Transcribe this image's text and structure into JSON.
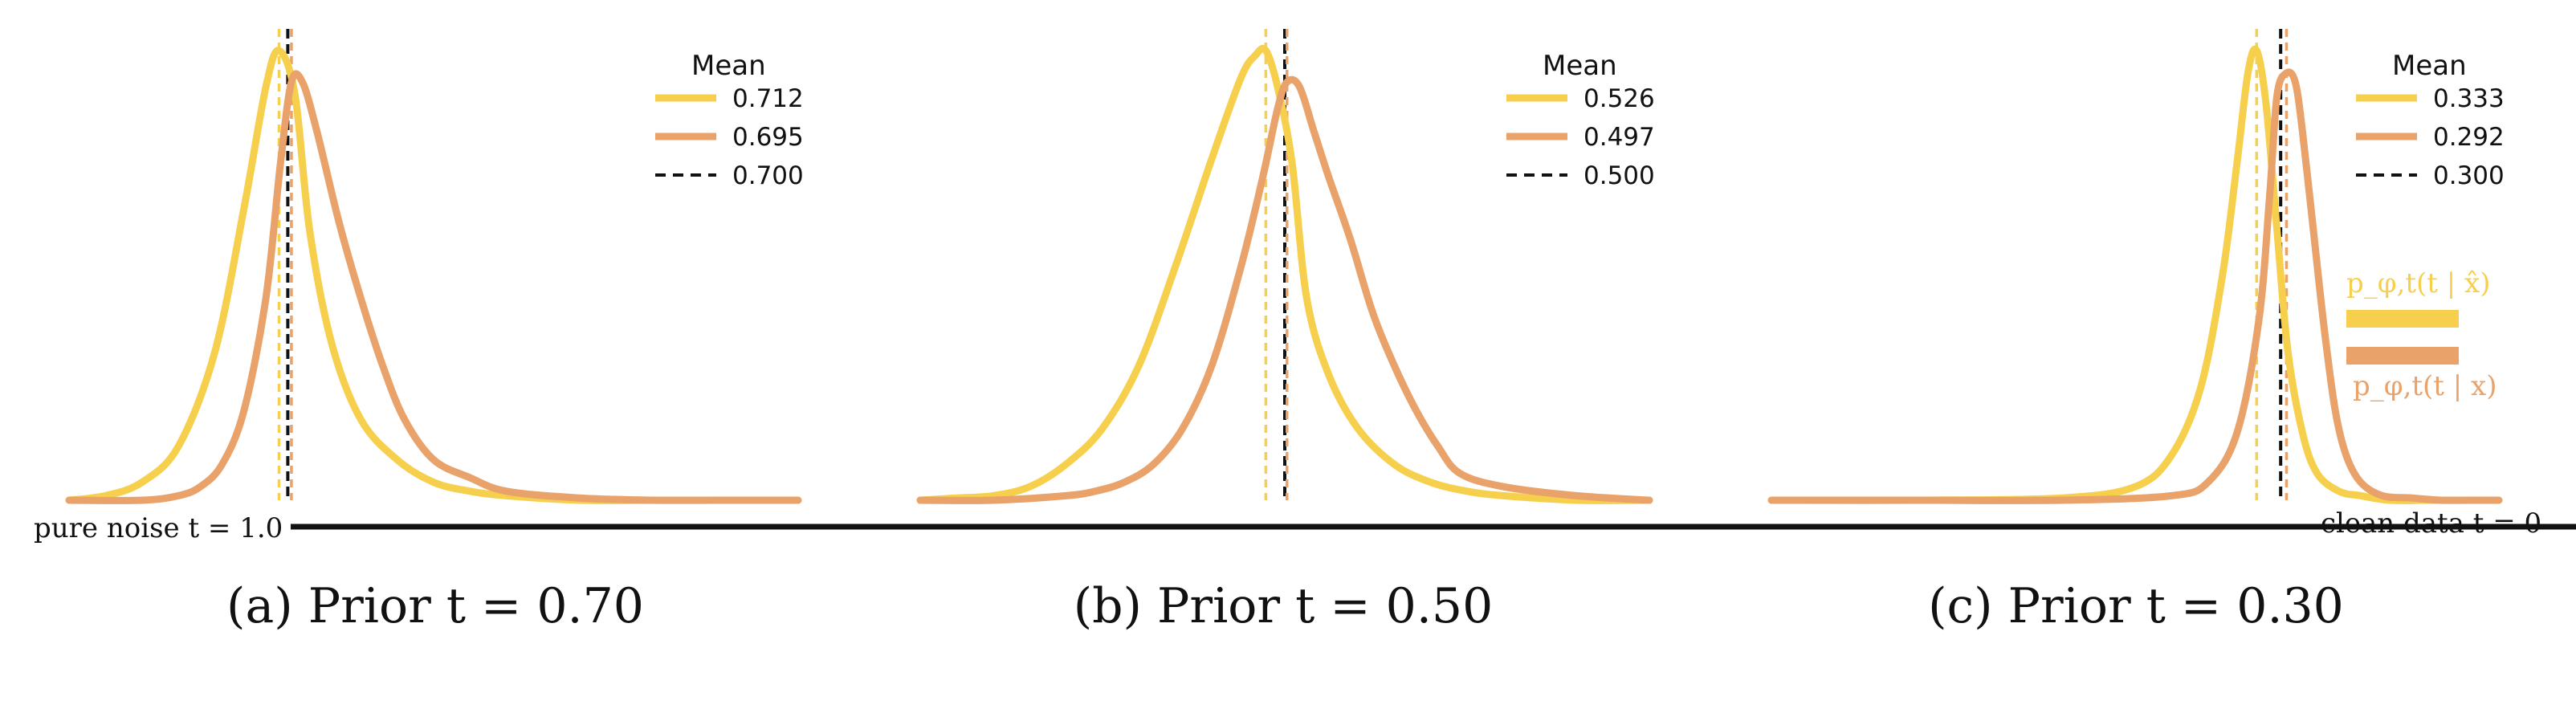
{
  "colors": {
    "yellow": "#F6D04D",
    "orange": "#E8A26A",
    "black": "#111111"
  },
  "timeline": {
    "left_label": "pure noise t = 1.0",
    "right_label": "clean data t = 0"
  },
  "side_legend": {
    "yellow_label": "p_φ,t(t | x̂)",
    "orange_label": "p_φ,t(t | x)"
  },
  "chart_data": [
    {
      "type": "line",
      "caption": "(a) Prior t = 0.70",
      "legend_title": "Mean",
      "legend_entries": [
        "0.712",
        "0.695",
        "0.700"
      ],
      "means": {
        "yellow": 0.712,
        "orange": 0.695,
        "black": 0.7
      },
      "series": [
        {
          "color": "yellow",
          "x": [
            1.0,
            0.95,
            0.9,
            0.85,
            0.8,
            0.76,
            0.73,
            0.712,
            0.69,
            0.67,
            0.64,
            0.6,
            0.55,
            0.5,
            0.45,
            0.4,
            0.3,
            0.2,
            0.1,
            0.0
          ],
          "y": [
            0,
            0.01,
            0.04,
            0.12,
            0.33,
            0.65,
            0.92,
            1.0,
            0.9,
            0.6,
            0.35,
            0.18,
            0.09,
            0.04,
            0.02,
            0.01,
            0.0,
            0.0,
            0.0,
            0.0
          ]
        },
        {
          "color": "orange",
          "x": [
            1.0,
            0.9,
            0.85,
            0.82,
            0.79,
            0.76,
            0.73,
            0.71,
            0.695,
            0.68,
            0.66,
            0.63,
            0.6,
            0.57,
            0.54,
            0.5,
            0.45,
            0.4,
            0.3,
            0.2,
            0.1,
            0.0
          ],
          "y": [
            0,
            0.0,
            0.01,
            0.03,
            0.08,
            0.2,
            0.45,
            0.75,
            0.93,
            0.93,
            0.82,
            0.62,
            0.45,
            0.3,
            0.18,
            0.09,
            0.05,
            0.02,
            0.005,
            0.0,
            0.0,
            0.0
          ]
        }
      ]
    },
    {
      "type": "line",
      "caption": "(b) Prior t = 0.50",
      "legend_title": "Mean",
      "legend_entries": [
        "0.526",
        "0.497",
        "0.500"
      ],
      "means": {
        "yellow": 0.526,
        "orange": 0.497,
        "black": 0.5
      },
      "series": [
        {
          "color": "yellow",
          "x": [
            1.0,
            0.95,
            0.9,
            0.85,
            0.8,
            0.75,
            0.7,
            0.65,
            0.6,
            0.56,
            0.54,
            0.526,
            0.51,
            0.49,
            0.47,
            0.44,
            0.4,
            0.35,
            0.3,
            0.25,
            0.2,
            0.1,
            0.0
          ],
          "y": [
            0,
            0.005,
            0.01,
            0.03,
            0.08,
            0.16,
            0.3,
            0.52,
            0.76,
            0.94,
            0.99,
            1.0,
            0.92,
            0.75,
            0.45,
            0.28,
            0.16,
            0.08,
            0.04,
            0.02,
            0.01,
            0.0,
            0.0
          ]
        },
        {
          "color": "orange",
          "x": [
            1.0,
            0.9,
            0.8,
            0.76,
            0.72,
            0.68,
            0.64,
            0.6,
            0.56,
            0.53,
            0.51,
            0.497,
            0.48,
            0.46,
            0.44,
            0.41,
            0.38,
            0.35,
            0.32,
            0.29,
            0.26,
            0.2,
            0.1,
            0.0
          ],
          "y": [
            0,
            0.0,
            0.01,
            0.02,
            0.04,
            0.08,
            0.16,
            0.3,
            0.52,
            0.72,
            0.87,
            0.93,
            0.92,
            0.82,
            0.72,
            0.58,
            0.42,
            0.3,
            0.2,
            0.12,
            0.06,
            0.03,
            0.01,
            0.0
          ]
        }
      ]
    },
    {
      "type": "line",
      "caption": "(c) Prior t = 0.30",
      "legend_title": "Mean",
      "legend_entries": [
        "0.333",
        "0.292",
        "0.300"
      ],
      "means": {
        "yellow": 0.333,
        "orange": 0.292,
        "black": 0.3
      },
      "series": [
        {
          "color": "yellow",
          "x": [
            1.0,
            0.8,
            0.6,
            0.5,
            0.45,
            0.41,
            0.38,
            0.36,
            0.345,
            0.333,
            0.32,
            0.305,
            0.29,
            0.27,
            0.25,
            0.22,
            0.19,
            0.15,
            0.1,
            0.05,
            0.0
          ],
          "y": [
            0,
            0.0,
            0.005,
            0.03,
            0.1,
            0.25,
            0.5,
            0.75,
            0.95,
            1.0,
            0.88,
            0.6,
            0.33,
            0.15,
            0.06,
            0.02,
            0.01,
            0.0,
            0.0,
            0.0,
            0.0
          ]
        },
        {
          "color": "orange",
          "x": [
            1.0,
            0.8,
            0.6,
            0.45,
            0.4,
            0.36,
            0.33,
            0.315,
            0.305,
            0.292,
            0.28,
            0.27,
            0.255,
            0.24,
            0.225,
            0.21,
            0.19,
            0.16,
            0.12,
            0.08,
            0.04,
            0.0
          ],
          "y": [
            0,
            0.0,
            0.0,
            0.01,
            0.04,
            0.15,
            0.4,
            0.68,
            0.9,
            0.95,
            0.93,
            0.82,
            0.6,
            0.38,
            0.2,
            0.1,
            0.04,
            0.01,
            0.005,
            0.0,
            0.0,
            0.0
          ]
        }
      ]
    }
  ]
}
